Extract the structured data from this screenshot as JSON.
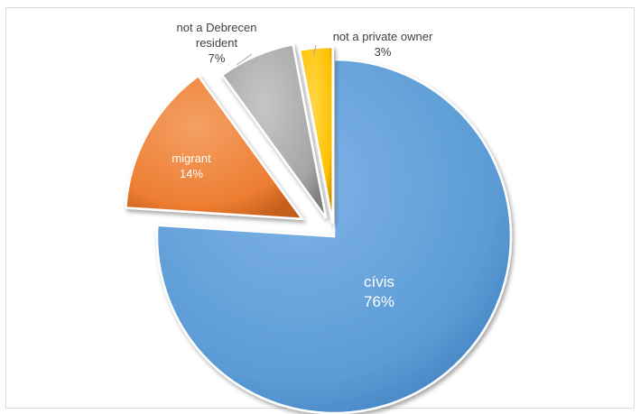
{
  "chart_data": {
    "type": "pie",
    "exploded": true,
    "legend": "none",
    "slices": [
      {
        "label": "cívis",
        "percent_label": "76%",
        "value": 76,
        "color": "#5b9bd5"
      },
      {
        "label": "migrant",
        "percent_label": "14%",
        "value": 14,
        "color": "#ed7d31"
      },
      {
        "label": "not a Debrecen resident",
        "percent_label": "7%",
        "value": 7,
        "color": "#a5a5a5"
      },
      {
        "label": "not a private owner",
        "percent_label": "3%",
        "value": 3,
        "color": "#ffc000"
      }
    ]
  }
}
